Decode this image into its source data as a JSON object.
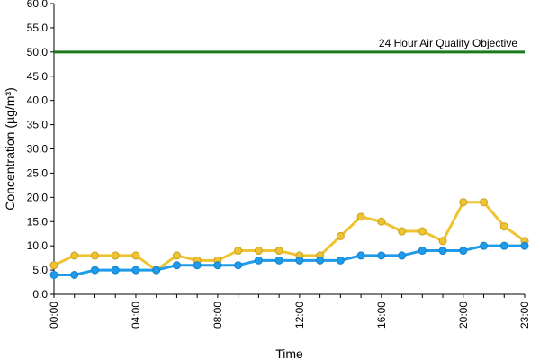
{
  "chart_data": {
    "type": "line",
    "title": "",
    "xlabel": "Time",
    "ylabel": "Concentration (µg/m³)",
    "ylim": [
      0,
      60
    ],
    "y_ticks": [
      "0.0",
      "5.0",
      "10.0",
      "15.0",
      "20.0",
      "25.0",
      "30.0",
      "35.0",
      "40.0",
      "45.0",
      "50.0",
      "55.0",
      "60.0"
    ],
    "x_tick_labels": [
      "00:00",
      "04:00",
      "08:00",
      "12:00",
      "16:00",
      "20:00",
      "23:00"
    ],
    "x_tick_hours": [
      0,
      4,
      8,
      12,
      16,
      20,
      23
    ],
    "x_hours": [
      0,
      1,
      2,
      3,
      4,
      5,
      6,
      7,
      8,
      9,
      10,
      11,
      12,
      13,
      14,
      15,
      16,
      17,
      18,
      19,
      20,
      21,
      22,
      23
    ],
    "grid": false,
    "legend": "none",
    "series": [
      {
        "color": "#F0C330",
        "values": [
          6,
          8,
          8,
          8,
          8,
          5,
          8,
          7,
          7,
          9,
          9,
          9,
          8,
          8,
          12,
          16,
          15,
          13,
          13,
          11,
          19,
          19,
          14,
          11
        ]
      },
      {
        "color": "#1E9BEA",
        "values": [
          4,
          4,
          5,
          5,
          5,
          5,
          6,
          6,
          6,
          6,
          7,
          7,
          7,
          7,
          7,
          8,
          8,
          8,
          9,
          9,
          9,
          10,
          10,
          10
        ]
      }
    ],
    "reference_line": {
      "value": 50,
      "label": "24 Hour Air Quality Objective",
      "color": "#1A7A1A"
    }
  }
}
